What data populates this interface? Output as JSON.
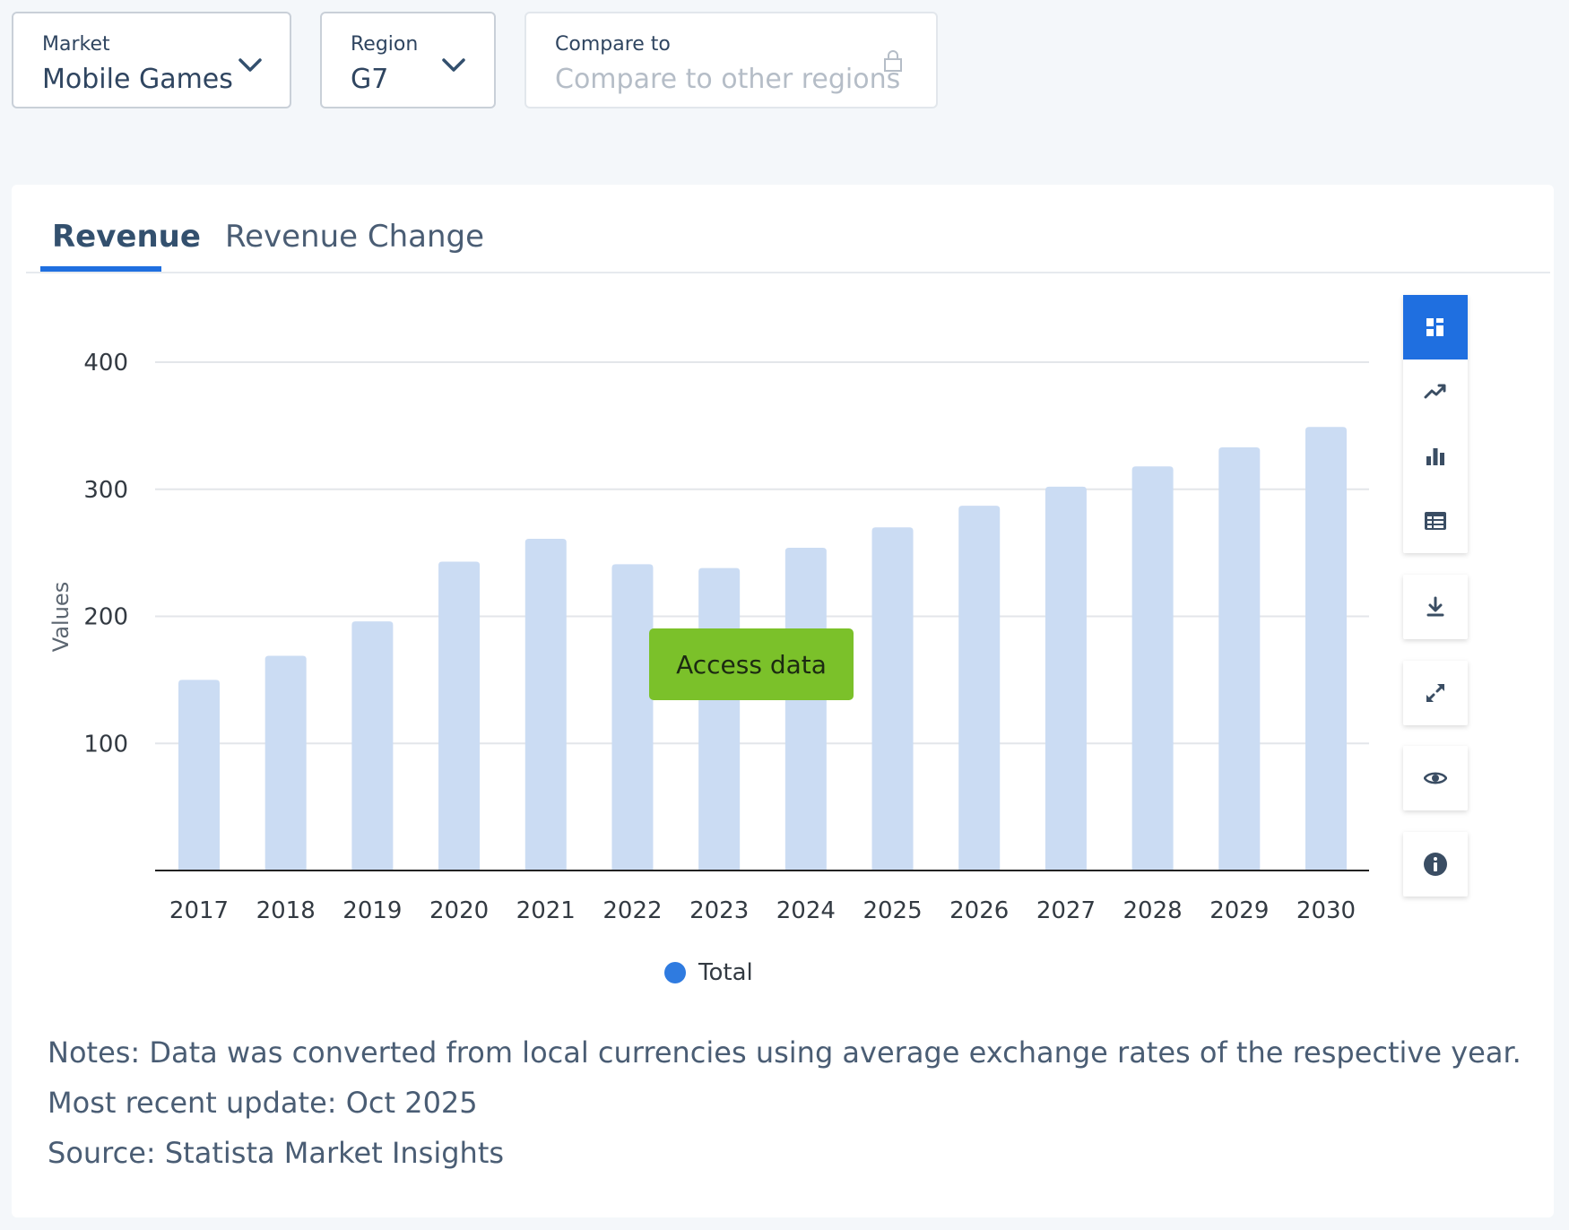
{
  "filters": {
    "market": {
      "label": "Market",
      "value": "Mobile Games"
    },
    "region": {
      "label": "Region",
      "value": "G7"
    },
    "compare": {
      "label": "Compare to",
      "placeholder": "Compare to other regions"
    }
  },
  "tabs": [
    {
      "label": "Revenue",
      "active": true
    },
    {
      "label": "Revenue Change",
      "active": false
    }
  ],
  "access_button": "Access data",
  "toolbar": {
    "chart_type_icons": [
      "grid-icon",
      "line-trend-icon",
      "bar-chart-icon",
      "table-icon"
    ],
    "action_icons": [
      "download-icon",
      "expand-icon",
      "eye-icon",
      "info-icon"
    ],
    "active_color": "#1f6fe0"
  },
  "notes": {
    "note": "Notes: Data was converted from local currencies using average exchange rates of the respective year.",
    "update": "Most recent update: Oct 2025",
    "source": "Source: Statista Market Insights"
  },
  "chart_data": {
    "type": "bar",
    "categories": [
      "2017",
      "2018",
      "2019",
      "2020",
      "2021",
      "2022",
      "2023",
      "2024",
      "2025",
      "2026",
      "2027",
      "2028",
      "2029",
      "2030"
    ],
    "series": [
      {
        "name": "Total",
        "values": [
          150,
          169,
          196,
          243,
          261,
          241,
          238,
          254,
          270,
          287,
          302,
          318,
          333,
          349
        ]
      }
    ],
    "xlabel": "",
    "ylabel": "Values",
    "yticks": [
      100,
      200,
      300,
      400
    ],
    "ylim": [
      0,
      400
    ],
    "grid": true,
    "legend": "bottom-center",
    "bar_color": "#cbdcf3",
    "legend_color": "#2f7be0"
  }
}
